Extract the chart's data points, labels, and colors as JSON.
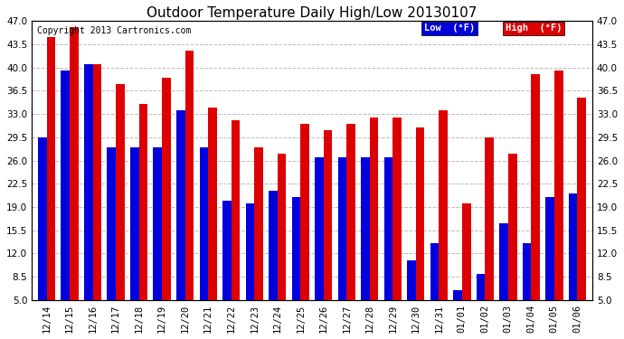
{
  "title": "Outdoor Temperature Daily High/Low 20130107",
  "copyright": "Copyright 2013 Cartronics.com",
  "legend_low": "Low  (°F)",
  "legend_high": "High  (°F)",
  "categories": [
    "12/14",
    "12/15",
    "12/16",
    "12/17",
    "12/18",
    "12/19",
    "12/20",
    "12/21",
    "12/22",
    "12/23",
    "12/24",
    "12/25",
    "12/26",
    "12/27",
    "12/28",
    "12/29",
    "12/30",
    "12/31",
    "01/01",
    "01/02",
    "01/03",
    "01/04",
    "01/05",
    "01/06"
  ],
  "low_vals": [
    29.5,
    39.5,
    40.5,
    28.0,
    28.0,
    28.0,
    33.5,
    28.0,
    20.0,
    19.5,
    21.5,
    20.5,
    26.5,
    26.5,
    26.5,
    26.5,
    11.0,
    13.5,
    6.5,
    9.0,
    16.5,
    13.5,
    20.5,
    21.0
  ],
  "high_vals": [
    44.5,
    46.0,
    40.5,
    37.5,
    34.5,
    38.5,
    42.5,
    34.0,
    32.0,
    28.0,
    27.0,
    31.5,
    30.5,
    31.5,
    32.5,
    32.5,
    31.0,
    33.5,
    19.5,
    29.5,
    27.0,
    39.0,
    39.5,
    35.5
  ],
  "low_color": "#0000dd",
  "high_color": "#dd0000",
  "background_color": "#ffffff",
  "plot_bg_color": "#ffffff",
  "grid_color": "#bbbbbb",
  "ylim": [
    5.0,
    47.0
  ],
  "yticks": [
    5.0,
    8.5,
    12.0,
    15.5,
    19.0,
    22.5,
    26.0,
    29.5,
    33.0,
    36.5,
    40.0,
    43.5,
    47.0
  ],
  "title_fontsize": 11,
  "copyright_fontsize": 7,
  "tick_fontsize": 7.5,
  "bar_width": 0.38
}
